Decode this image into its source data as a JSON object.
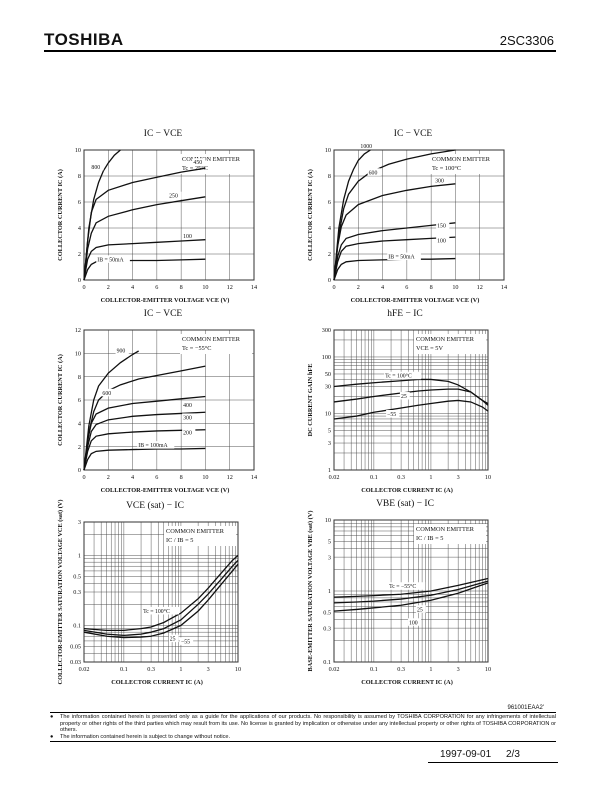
{
  "header": {
    "brand": "TOSHIBA",
    "part_number": "2SC3306"
  },
  "chart_data": [
    {
      "id": "g1",
      "type": "line",
      "title": "IC − VCE",
      "xlabel": "COLLECTOR-EMITTER VOLTAGE  VCE  (V)",
      "ylabel": "COLLECTOR CURRENT  IC  (A)",
      "xlim": [
        0,
        14
      ],
      "ylim": [
        0,
        10
      ],
      "xscale": "linear",
      "yscale": "linear",
      "xticks": [
        0,
        2,
        4,
        6,
        8,
        10,
        12,
        14
      ],
      "yticks": [
        0,
        2,
        4,
        6,
        8,
        10
      ],
      "grid": true,
      "annotations": [
        "COMMON EMITTER",
        "Tc = 25°C"
      ],
      "series": [
        {
          "name": "800",
          "x": [
            0,
            0.4,
            0.8,
            1.2,
            1.6,
            2.0,
            2.5,
            3.0
          ],
          "y": [
            0,
            4.0,
            6.2,
            7.5,
            8.4,
            9.0,
            9.6,
            10.0
          ]
        },
        {
          "name": "450",
          "x": [
            0,
            0.3,
            0.6,
            1.0,
            2.0,
            4.0,
            6.0,
            8.0,
            10.0
          ],
          "y": [
            0,
            3.0,
            5.2,
            6.2,
            6.9,
            7.5,
            7.9,
            8.3,
            8.6
          ]
        },
        {
          "name": "250",
          "x": [
            0,
            0.3,
            0.6,
            1.0,
            2.0,
            4.0,
            6.0,
            8.0,
            10.0
          ],
          "y": [
            0,
            2.4,
            3.6,
            4.4,
            4.9,
            5.4,
            5.8,
            6.1,
            6.4
          ]
        },
        {
          "name": "100",
          "x": [
            0,
            0.3,
            0.6,
            1.0,
            2.0,
            4.0,
            6.0,
            8.0,
            10.0
          ],
          "y": [
            0,
            1.6,
            2.2,
            2.5,
            2.7,
            2.8,
            2.9,
            3.0,
            3.1
          ]
        },
        {
          "name": "IB = 50mA",
          "x": [
            0,
            0.3,
            0.6,
            1.0,
            2.0,
            4.0,
            6.0,
            8.0,
            10.0
          ],
          "y": [
            0,
            0.8,
            1.2,
            1.4,
            1.45,
            1.5,
            1.5,
            1.55,
            1.6
          ]
        }
      ]
    },
    {
      "id": "g2",
      "type": "line",
      "title": "IC − VCE",
      "xlabel": "COLLECTOR-EMITTER VOLTAGE  VCE  (V)",
      "ylabel": "COLLECTOR CURRENT  IC  (A)",
      "xlim": [
        0,
        14
      ],
      "ylim": [
        0,
        10
      ],
      "xscale": "linear",
      "yscale": "linear",
      "xticks": [
        0,
        2,
        4,
        6,
        8,
        10,
        12,
        14
      ],
      "yticks": [
        0,
        2,
        4,
        6,
        8,
        10
      ],
      "grid": true,
      "annotations": [
        "COMMON EMITTER",
        "Tc = 100°C"
      ],
      "series": [
        {
          "name": "1000",
          "x": [
            0,
            0.4,
            0.8,
            1.2,
            1.6,
            2.0,
            2.5,
            3.0
          ],
          "y": [
            0,
            4.0,
            6.2,
            7.6,
            8.5,
            9.2,
            9.7,
            10.0
          ]
        },
        {
          "name": "600",
          "x": [
            0,
            0.4,
            0.8,
            1.2,
            2.0,
            3.0,
            4.5,
            6.0,
            8.0,
            10.0
          ],
          "y": [
            0,
            3.5,
            5.5,
            6.6,
            7.6,
            8.3,
            8.9,
            9.3,
            9.7,
            10.0
          ]
        },
        {
          "name": "300",
          "x": [
            0,
            0.3,
            0.6,
            1.0,
            2.0,
            4.0,
            6.0,
            8.0,
            10.0
          ],
          "y": [
            0,
            2.6,
            4.1,
            5.0,
            5.8,
            6.5,
            6.9,
            7.2,
            7.4
          ]
        },
        {
          "name": "150",
          "x": [
            0,
            0.3,
            0.6,
            1.0,
            2.0,
            4.0,
            6.0,
            8.0,
            10.0
          ],
          "y": [
            0,
            1.8,
            2.7,
            3.2,
            3.5,
            3.8,
            4.0,
            4.2,
            4.4
          ]
        },
        {
          "name": "100",
          "x": [
            0,
            0.3,
            0.6,
            1.0,
            2.0,
            4.0,
            6.0,
            8.0,
            10.0
          ],
          "y": [
            0,
            1.4,
            2.2,
            2.6,
            2.8,
            3.0,
            3.1,
            3.2,
            3.3
          ]
        },
        {
          "name": "IB = 50mA",
          "x": [
            0,
            0.3,
            0.6,
            1.0,
            2.0,
            4.0,
            6.0,
            8.0,
            10.0
          ],
          "y": [
            0,
            0.8,
            1.2,
            1.4,
            1.5,
            1.55,
            1.6,
            1.6,
            1.65
          ]
        }
      ]
    },
    {
      "id": "g3",
      "type": "line",
      "title": "IC − VCE",
      "xlabel": "COLLECTOR-EMITTER VOLTAGE  VCE  (V)",
      "ylabel": "COLLECTOR CURRENT  IC  (A)",
      "xlim": [
        0,
        14
      ],
      "ylim": [
        0,
        12
      ],
      "xscale": "linear",
      "yscale": "linear",
      "xticks": [
        0,
        2,
        4,
        6,
        8,
        10,
        12,
        14
      ],
      "yticks": [
        0,
        2,
        4,
        6,
        8,
        10,
        12
      ],
      "grid": true,
      "annotations": [
        "COMMON EMITTER",
        "Tc = −55°C"
      ],
      "series": [
        {
          "name": "900",
          "x": [
            0,
            0.4,
            0.8,
            1.2,
            2.0,
            3.0,
            4.0,
            4.5
          ],
          "y": [
            0,
            3.8,
            6.0,
            7.2,
            8.3,
            9.2,
            9.9,
            10.2
          ]
        },
        {
          "name": "600",
          "x": [
            0,
            0.4,
            0.8,
            1.2,
            2.0,
            3.0,
            4.5,
            6.0,
            8.0,
            10.0
          ],
          "y": [
            0,
            3.2,
            5.0,
            6.0,
            6.8,
            7.3,
            7.8,
            8.1,
            8.5,
            8.9
          ]
        },
        {
          "name": "400",
          "x": [
            0,
            0.3,
            0.6,
            1.0,
            2.0,
            4.0,
            6.0,
            8.0,
            10.0
          ],
          "y": [
            0,
            2.5,
            4.0,
            4.8,
            5.3,
            5.7,
            5.9,
            6.1,
            6.3
          ]
        },
        {
          "name": "300",
          "x": [
            0,
            0.3,
            0.6,
            1.0,
            2.0,
            4.0,
            6.0,
            8.0,
            10.0
          ],
          "y": [
            0,
            2.0,
            3.3,
            3.9,
            4.3,
            4.6,
            4.75,
            4.85,
            4.95
          ]
        },
        {
          "name": "200",
          "x": [
            0,
            0.3,
            0.6,
            1.0,
            2.0,
            4.0,
            6.0,
            8.0,
            10.0
          ],
          "y": [
            0,
            1.6,
            2.5,
            2.9,
            3.1,
            3.25,
            3.35,
            3.4,
            3.45
          ]
        },
        {
          "name": "IB = 100mA",
          "x": [
            0,
            0.3,
            0.6,
            1.0,
            2.0,
            4.0,
            6.0,
            8.0,
            10.0
          ],
          "y": [
            0,
            0.9,
            1.4,
            1.6,
            1.7,
            1.75,
            1.8,
            1.8,
            1.85
          ]
        }
      ]
    },
    {
      "id": "g4",
      "type": "line",
      "title": "hFE − IC",
      "xlabel": "COLLECTOR CURRENT  IC  (A)",
      "ylabel": "DC CURRENT GAIN  hFE",
      "xlim": [
        0.02,
        10
      ],
      "ylim": [
        1,
        300
      ],
      "xscale": "log",
      "yscale": "log",
      "xticks": [
        0.02,
        0.1,
        0.3,
        1,
        3,
        10
      ],
      "xticklabels": [
        "0.02",
        "0.1",
        "0.3",
        "1",
        "3",
        "10"
      ],
      "yticks": [
        1,
        3,
        5,
        10,
        30,
        50,
        100,
        300
      ],
      "yticklabels": [
        "1",
        "3",
        "5",
        "10",
        "30",
        "50",
        "100",
        "300"
      ],
      "grid": true,
      "annotations": [
        "COMMON EMITTER",
        "VCE = 5V"
      ],
      "series": [
        {
          "name": "Tc = 100°C",
          "x": [
            0.02,
            0.05,
            0.1,
            0.3,
            0.6,
            1,
            2,
            3,
            5,
            8,
            10
          ],
          "y": [
            30,
            33,
            35,
            38,
            40,
            40,
            37,
            32,
            24,
            17,
            15
          ]
        },
        {
          "name": "25",
          "x": [
            0.02,
            0.05,
            0.1,
            0.3,
            0.6,
            1,
            2,
            3,
            5,
            8,
            10
          ],
          "y": [
            16,
            18,
            20,
            23,
            25,
            26,
            27,
            27,
            24,
            17,
            14
          ]
        },
        {
          "name": "−55",
          "x": [
            0.02,
            0.05,
            0.1,
            0.3,
            0.6,
            1,
            2,
            3,
            5,
            8,
            10
          ],
          "y": [
            8,
            9,
            10.5,
            12.5,
            14,
            15,
            16.5,
            17,
            16,
            13,
            11
          ]
        }
      ]
    },
    {
      "id": "g5",
      "type": "line",
      "title": "VCE (sat) − IC",
      "xlabel": "COLLECTOR CURRENT  IC  (A)",
      "ylabel": "COLLECTOR-EMITTER SATURATION VOLTAGE  VCE (sat)  (V)",
      "xlim": [
        0.02,
        10
      ],
      "ylim": [
        0.03,
        3
      ],
      "xscale": "log",
      "yscale": "log",
      "xticks": [
        0.02,
        0.1,
        0.3,
        1,
        3,
        10
      ],
      "xticklabels": [
        "0.02",
        "0.1",
        "0.3",
        "1",
        "3",
        "10"
      ],
      "yticks": [
        0.03,
        0.05,
        0.1,
        0.3,
        0.5,
        1,
        3
      ],
      "yticklabels": [
        "0.03",
        "0.05",
        "0.1",
        "0.3",
        "0.5",
        "1",
        "3"
      ],
      "grid": true,
      "annotations": [
        "COMMON EMITTER",
        "IC / IB = 5"
      ],
      "series": [
        {
          "name": "Tc = 100°C",
          "x": [
            0.02,
            0.05,
            0.1,
            0.2,
            0.3,
            0.5,
            1,
            2,
            3,
            5,
            8,
            10
          ],
          "y": [
            0.09,
            0.085,
            0.085,
            0.09,
            0.095,
            0.11,
            0.15,
            0.24,
            0.34,
            0.55,
            0.85,
            1.0
          ]
        },
        {
          "name": "25",
          "x": [
            0.02,
            0.05,
            0.1,
            0.2,
            0.3,
            0.5,
            1,
            2,
            3,
            5,
            8,
            10
          ],
          "y": [
            0.085,
            0.075,
            0.072,
            0.075,
            0.08,
            0.09,
            0.12,
            0.2,
            0.28,
            0.45,
            0.7,
            0.85
          ]
        },
        {
          "name": "−55",
          "x": [
            0.02,
            0.05,
            0.1,
            0.2,
            0.3,
            0.5,
            1,
            2,
            3,
            5,
            8,
            10
          ],
          "y": [
            0.08,
            0.07,
            0.067,
            0.068,
            0.07,
            0.078,
            0.1,
            0.16,
            0.23,
            0.38,
            0.6,
            0.75
          ]
        }
      ]
    },
    {
      "id": "g6",
      "type": "line",
      "title": "VBE (sat) − IC",
      "xlabel": "COLLECTOR CURRENT  IC  (A)",
      "ylabel": "BASE-EMITTER SATURATION VOLTAGE  VBE (sat)  (V)",
      "xlim": [
        0.02,
        10
      ],
      "ylim": [
        0.1,
        10
      ],
      "xscale": "log",
      "yscale": "log",
      "xticks": [
        0.02,
        0.1,
        0.3,
        1,
        3,
        10
      ],
      "xticklabels": [
        "0.02",
        "0.1",
        "0.3",
        "1",
        "3",
        "10"
      ],
      "yticks": [
        0.1,
        0.3,
        0.5,
        1,
        3,
        5,
        10
      ],
      "yticklabels": [
        "0.1",
        "0.3",
        "0.5",
        "1",
        "3",
        "5",
        "10"
      ],
      "grid": true,
      "annotations": [
        "COMMON EMITTER",
        "IC / IB = 5"
      ],
      "series": [
        {
          "name": "Tc = −55°C",
          "x": [
            0.02,
            0.05,
            0.1,
            0.3,
            1,
            3,
            10
          ],
          "y": [
            0.82,
            0.84,
            0.86,
            0.9,
            1.0,
            1.2,
            1.5
          ]
        },
        {
          "name": "25",
          "x": [
            0.02,
            0.05,
            0.1,
            0.3,
            1,
            3,
            10
          ],
          "y": [
            0.68,
            0.7,
            0.72,
            0.77,
            0.87,
            1.05,
            1.38
          ]
        },
        {
          "name": "100",
          "x": [
            0.02,
            0.05,
            0.1,
            0.3,
            1,
            3,
            10
          ],
          "y": [
            0.52,
            0.55,
            0.58,
            0.63,
            0.74,
            0.93,
            1.3
          ]
        }
      ]
    }
  ],
  "footer": {
    "doc_id": "961001EAA2'",
    "notes": [
      "The information contained herein is presented only as a guide for the applications of our products. No responsibility is assumed by TOSHIBA CORPORATION for any infringements of intellectual property or other rights of the third parties which may result from its use. No license is granted by implication or otherwise under any intellectual property or other rights of TOSHIBA CORPORATION or others.",
      "The information contained herein is subject to change without notice."
    ],
    "date": "1997-09-01",
    "page": "2/3"
  }
}
